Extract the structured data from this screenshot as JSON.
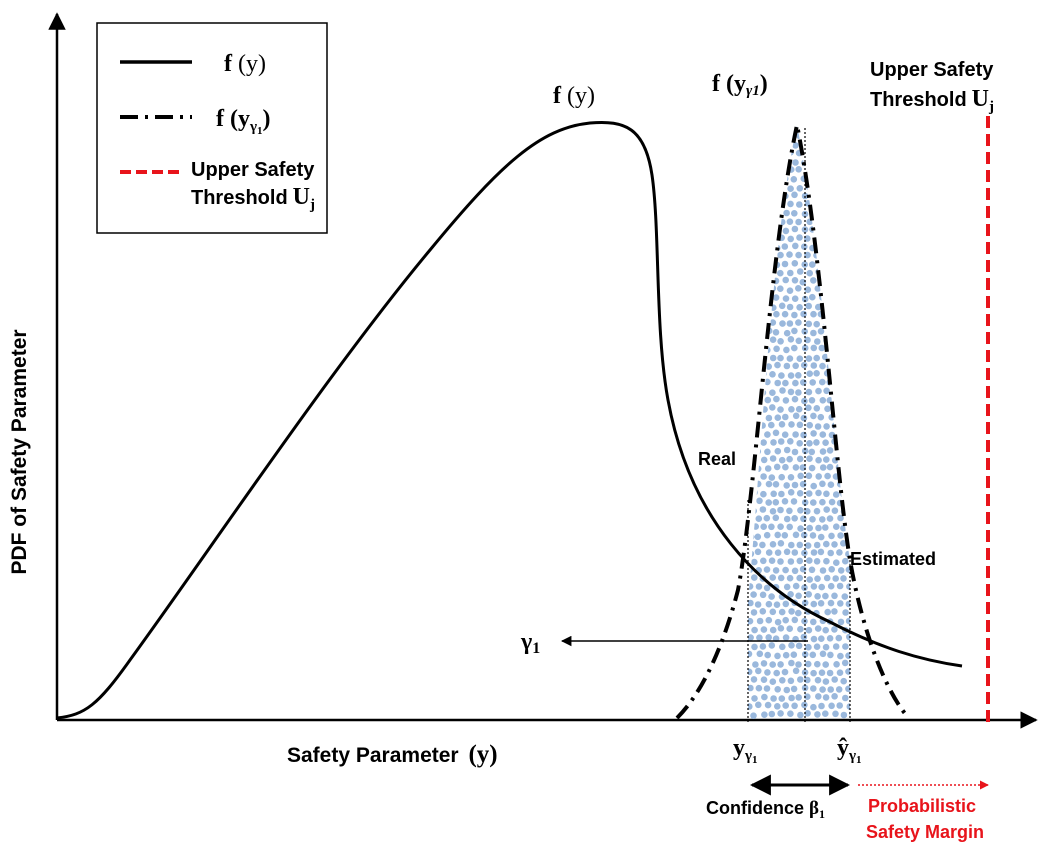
{
  "axes": {
    "y_label": "PDF of Safety Parameter",
    "x_label": "Safety Parameter",
    "x_symbol": "(y)"
  },
  "legend": {
    "solid": {
      "func": "f",
      "arg": "(y)"
    },
    "dashdot": {
      "func": "f",
      "arg_open": "(y",
      "arg_sub": "γ",
      "arg_subsub": "1",
      "arg_close": ")"
    },
    "dashed": {
      "line1": "Upper Safety",
      "line2_text": "Threshold",
      "line2_sym": "U",
      "line2_sub": "j"
    }
  },
  "curve_labels": {
    "f_y": {
      "func": "f",
      "arg": "(y)"
    },
    "f_y_gamma": {
      "func": "f",
      "arg_open": "(y",
      "arg_sub": "γ1",
      "arg_close": ")"
    },
    "threshold": {
      "line1": "Upper Safety",
      "line2_text": "Threshold",
      "line2_sym": "U",
      "line2_sub": "j"
    },
    "real": "Real",
    "estimated": "Estimated",
    "gamma": {
      "sym": "γ",
      "sub": "1"
    }
  },
  "bottom_labels": {
    "y_gamma": {
      "sym": "y",
      "sub": "γ",
      "subsub": "1"
    },
    "y_hat_gamma": {
      "sym": "ŷ",
      "sub": "γ",
      "subsub": "1"
    },
    "confidence": {
      "text": "Confidence",
      "sym": "β",
      "sub": "1"
    },
    "margin_line1": "Probabilistic",
    "margin_line2": "Safety Margin"
  },
  "colors": {
    "curve": "#000000",
    "threshold": "#e8141b",
    "dots": "#9ab8dc",
    "margin_text": "#e8141b"
  }
}
